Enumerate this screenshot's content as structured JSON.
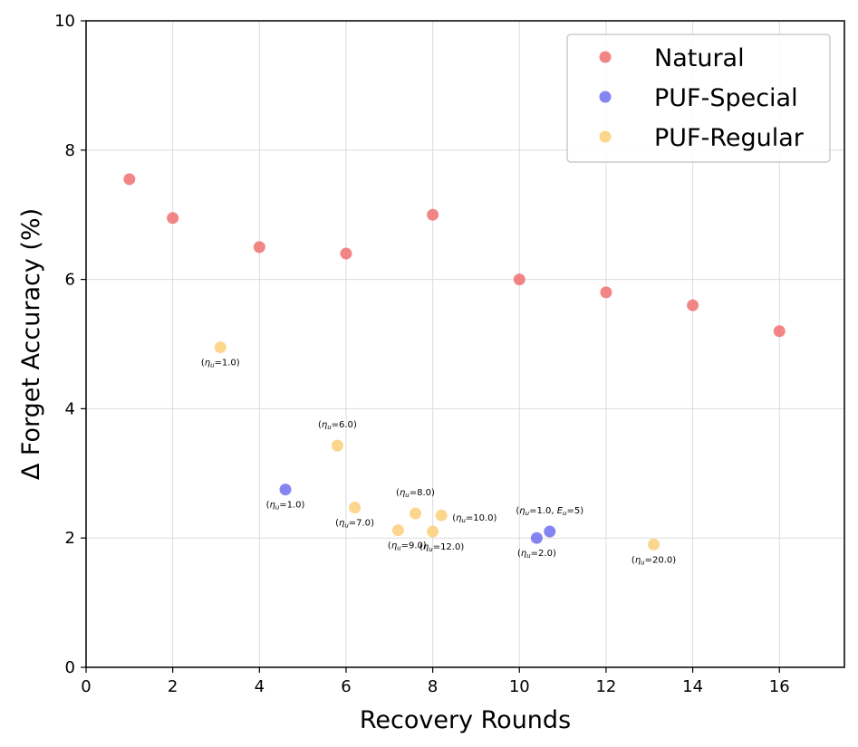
{
  "chart_data": {
    "type": "scatter",
    "xlabel": "Recovery Rounds",
    "ylabel": "Δ Forget Accuracy (%)",
    "xlim": [
      0,
      17.5
    ],
    "ylim": [
      0,
      10
    ],
    "xticks": [
      0,
      2,
      4,
      6,
      8,
      10,
      12,
      14,
      16
    ],
    "yticks": [
      0,
      2,
      4,
      6,
      8,
      10
    ],
    "grid": true,
    "legend_position": "top-right",
    "series": [
      {
        "name": "Natural",
        "color": "#f07070",
        "points": [
          {
            "x": 1,
            "y": 7.55
          },
          {
            "x": 2,
            "y": 6.95
          },
          {
            "x": 4,
            "y": 6.5
          },
          {
            "x": 6,
            "y": 6.4
          },
          {
            "x": 8,
            "y": 7.0
          },
          {
            "x": 10,
            "y": 6.0
          },
          {
            "x": 12,
            "y": 5.8
          },
          {
            "x": 14,
            "y": 5.6
          },
          {
            "x": 16,
            "y": 5.2
          }
        ]
      },
      {
        "name": "PUF-Special",
        "color": "#7070f0",
        "points": [
          {
            "x": 4.6,
            "y": 2.75,
            "label": "(ηu=1.0)",
            "label_pos": "below",
            "label_color": "#000000"
          },
          {
            "x": 10.4,
            "y": 2.0,
            "label": "(ηu=2.0)",
            "label_pos": "below",
            "label_color": "#e00000"
          },
          {
            "x": 10.7,
            "y": 2.1,
            "label": "(ηu=1.0, Eu=5)",
            "label_pos": "above",
            "label_color": "#000000"
          }
        ]
      },
      {
        "name": "PUF-Regular",
        "color": "#fbcf78",
        "points": [
          {
            "x": 3.1,
            "y": 4.95,
            "label": "(ηu=1.0)",
            "label_pos": "below",
            "label_color": "#000000"
          },
          {
            "x": 5.8,
            "y": 3.43,
            "label": "(ηu=6.0)",
            "label_pos": "above",
            "label_color": "#000000"
          },
          {
            "x": 6.2,
            "y": 2.47,
            "label": "(ηu=7.0)",
            "label_pos": "below",
            "label_color": "#000000"
          },
          {
            "x": 7.2,
            "y": 2.12,
            "label": "(ηu=9.0)",
            "label_pos": "below-right",
            "label_color": "#000000"
          },
          {
            "x": 7.6,
            "y": 2.38,
            "label": "(ηu=8.0)",
            "label_pos": "above",
            "label_color": "#000000"
          },
          {
            "x": 8.0,
            "y": 2.1,
            "label": "(ηu=12.0)",
            "label_pos": "below-right",
            "label_color": "#000000"
          },
          {
            "x": 8.2,
            "y": 2.35,
            "label": "(ηu=10.0)",
            "label_pos": "right-below",
            "label_color": "#000000"
          },
          {
            "x": 13.1,
            "y": 1.9,
            "label": "(ηu=20.0)",
            "label_pos": "below",
            "label_color": "#e00000"
          }
        ]
      }
    ]
  }
}
